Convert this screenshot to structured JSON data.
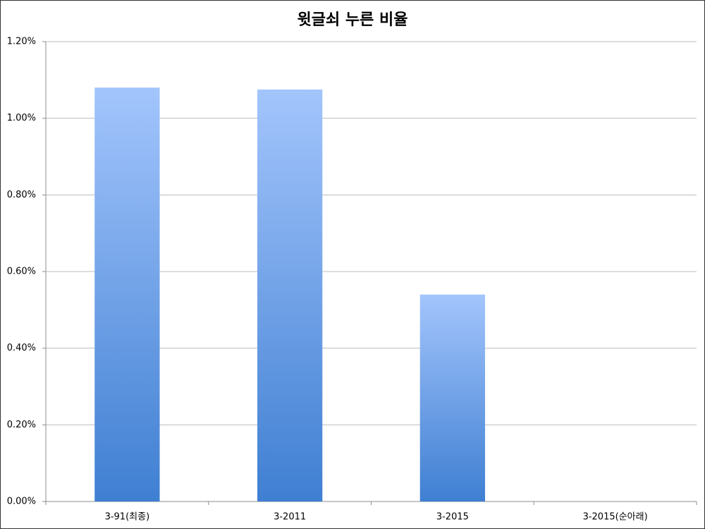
{
  "chart_data": {
    "type": "bar",
    "title": "윗글쇠 누른 비율",
    "categories": [
      "3-91(최종)",
      "3-2011",
      "3-2015",
      "3-2015(순아래)"
    ],
    "values": [
      1.08,
      1.075,
      0.54,
      0
    ],
    "color": "#3f7fd2",
    "color_top": "#a3c5fc",
    "ylim": [
      0,
      1.2
    ],
    "yticks": [
      {
        "value": 0,
        "label": "0.00%"
      },
      {
        "value": 0.2,
        "label": "0.20%"
      },
      {
        "value": 0.4,
        "label": "0.40%"
      },
      {
        "value": 0.6,
        "label": "0.60%"
      },
      {
        "value": 0.8,
        "label": "0.80%"
      },
      {
        "value": 1.0,
        "label": "1.00%"
      },
      {
        "value": 1.2,
        "label": "1.20%"
      }
    ],
    "grid": true
  }
}
